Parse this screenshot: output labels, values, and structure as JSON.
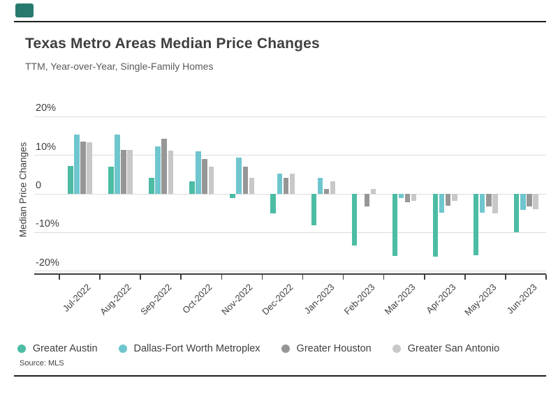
{
  "header": {
    "title": "Texas Metro Areas Median Price Changes",
    "subtitle": "TTM, Year-over-Year, Single-Family Homes"
  },
  "source": {
    "label": "Source: MLS"
  },
  "marker_color": "#27796D",
  "chart_data": {
    "type": "bar",
    "title": "Texas Metro Areas Median Price Changes",
    "subtitle": "TTM, Year-over-Year, Single-Family Homes",
    "xlabel": "",
    "ylabel": "Median Price Changes",
    "ylim": [
      -20,
      20
    ],
    "grid": true,
    "legend_position": "bottom",
    "yticks": [
      {
        "value": 20,
        "label": "20%"
      },
      {
        "value": 10,
        "label": "10%"
      },
      {
        "value": 0,
        "label": "0"
      },
      {
        "value": -10,
        "label": "-10%"
      },
      {
        "value": -20,
        "label": "-20%"
      }
    ],
    "categories": [
      "Jul-2022",
      "Aug-2022",
      "Sep-2022",
      "Oct-2022",
      "Nov-2022",
      "Dec-2022",
      "Jan-2023",
      "Feb-2023",
      "Mar-2023",
      "Apr-2023",
      "May-2023",
      "Jun-2023"
    ],
    "series": [
      {
        "name": "Greater Austin",
        "color": "#4CBCA4",
        "values": [
          7.2,
          7.1,
          4.2,
          3.2,
          -1.1,
          -5.1,
          -8.2,
          -13.3,
          -16.1,
          -16.2,
          -15.9,
          -9.9
        ]
      },
      {
        "name": "Dallas-Fort Worth Metroplex",
        "color": "#6FC6CE",
        "values": [
          15.4,
          15.4,
          12.2,
          11.1,
          9.3,
          5.2,
          4.2,
          0,
          -1.1,
          -4.8,
          -4.8,
          -4.1
        ]
      },
      {
        "name": "Greater Houston",
        "color": "#969696",
        "values": [
          13.5,
          11.3,
          14.3,
          9.1,
          7.1,
          4.1,
          1.3,
          -3.2,
          -2.1,
          -3.0,
          -3.3,
          -3.3
        ]
      },
      {
        "name": "Greater San Antonio",
        "color": "#C8C8C8",
        "values": [
          13.3,
          11.3,
          11.2,
          7.1,
          4.1,
          5.2,
          3.2,
          1.2,
          -1.8,
          -1.8,
          -5.0,
          -3.9
        ]
      }
    ],
    "source": "Source: MLS"
  }
}
